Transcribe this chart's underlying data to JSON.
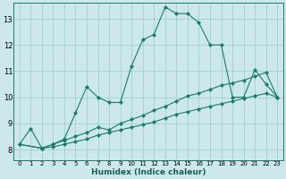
{
  "xlabel": "Humidex (Indice chaleur)",
  "background_color": "#cce8ea",
  "grid_color": "#99cccc",
  "line_color": "#1a7a6e",
  "xlim": [
    -0.5,
    23.5
  ],
  "ylim": [
    7.6,
    13.6
  ],
  "xticks": [
    0,
    1,
    2,
    3,
    4,
    5,
    6,
    7,
    8,
    9,
    10,
    11,
    12,
    13,
    14,
    15,
    16,
    17,
    18,
    19,
    20,
    21,
    22,
    23
  ],
  "yticks": [
    8,
    9,
    10,
    11,
    12,
    13
  ],
  "line1_x": [
    0,
    1,
    2,
    3,
    4,
    5,
    6,
    7,
    8,
    9,
    10,
    11,
    12,
    13,
    14,
    15,
    16,
    17,
    18,
    19,
    20,
    21,
    22,
    23
  ],
  "line1_y": [
    8.2,
    8.8,
    8.05,
    8.2,
    8.4,
    9.4,
    10.4,
    10.0,
    9.8,
    9.8,
    11.2,
    12.2,
    12.4,
    13.45,
    13.2,
    13.2,
    12.85,
    12.0,
    12.0,
    10.0,
    10.0,
    11.05,
    10.5,
    10.0
  ],
  "line2_x": [
    0,
    2,
    3,
    4,
    5,
    6,
    7,
    8,
    9,
    10,
    11,
    12,
    13,
    14,
    15,
    16,
    17,
    18,
    19,
    20,
    21,
    22,
    23
  ],
  "line2_y": [
    8.2,
    8.05,
    8.2,
    8.35,
    8.5,
    8.65,
    8.85,
    8.75,
    9.0,
    9.15,
    9.3,
    9.5,
    9.65,
    9.85,
    10.05,
    10.15,
    10.3,
    10.45,
    10.55,
    10.65,
    10.8,
    10.95,
    10.0
  ],
  "line3_x": [
    0,
    2,
    3,
    4,
    5,
    6,
    7,
    8,
    9,
    10,
    11,
    12,
    13,
    14,
    15,
    16,
    17,
    18,
    19,
    20,
    21,
    22,
    23
  ],
  "line3_y": [
    8.2,
    8.05,
    8.1,
    8.2,
    8.3,
    8.4,
    8.55,
    8.65,
    8.75,
    8.85,
    8.95,
    9.05,
    9.2,
    9.35,
    9.45,
    9.55,
    9.65,
    9.75,
    9.85,
    9.95,
    10.05,
    10.15,
    10.0
  ]
}
